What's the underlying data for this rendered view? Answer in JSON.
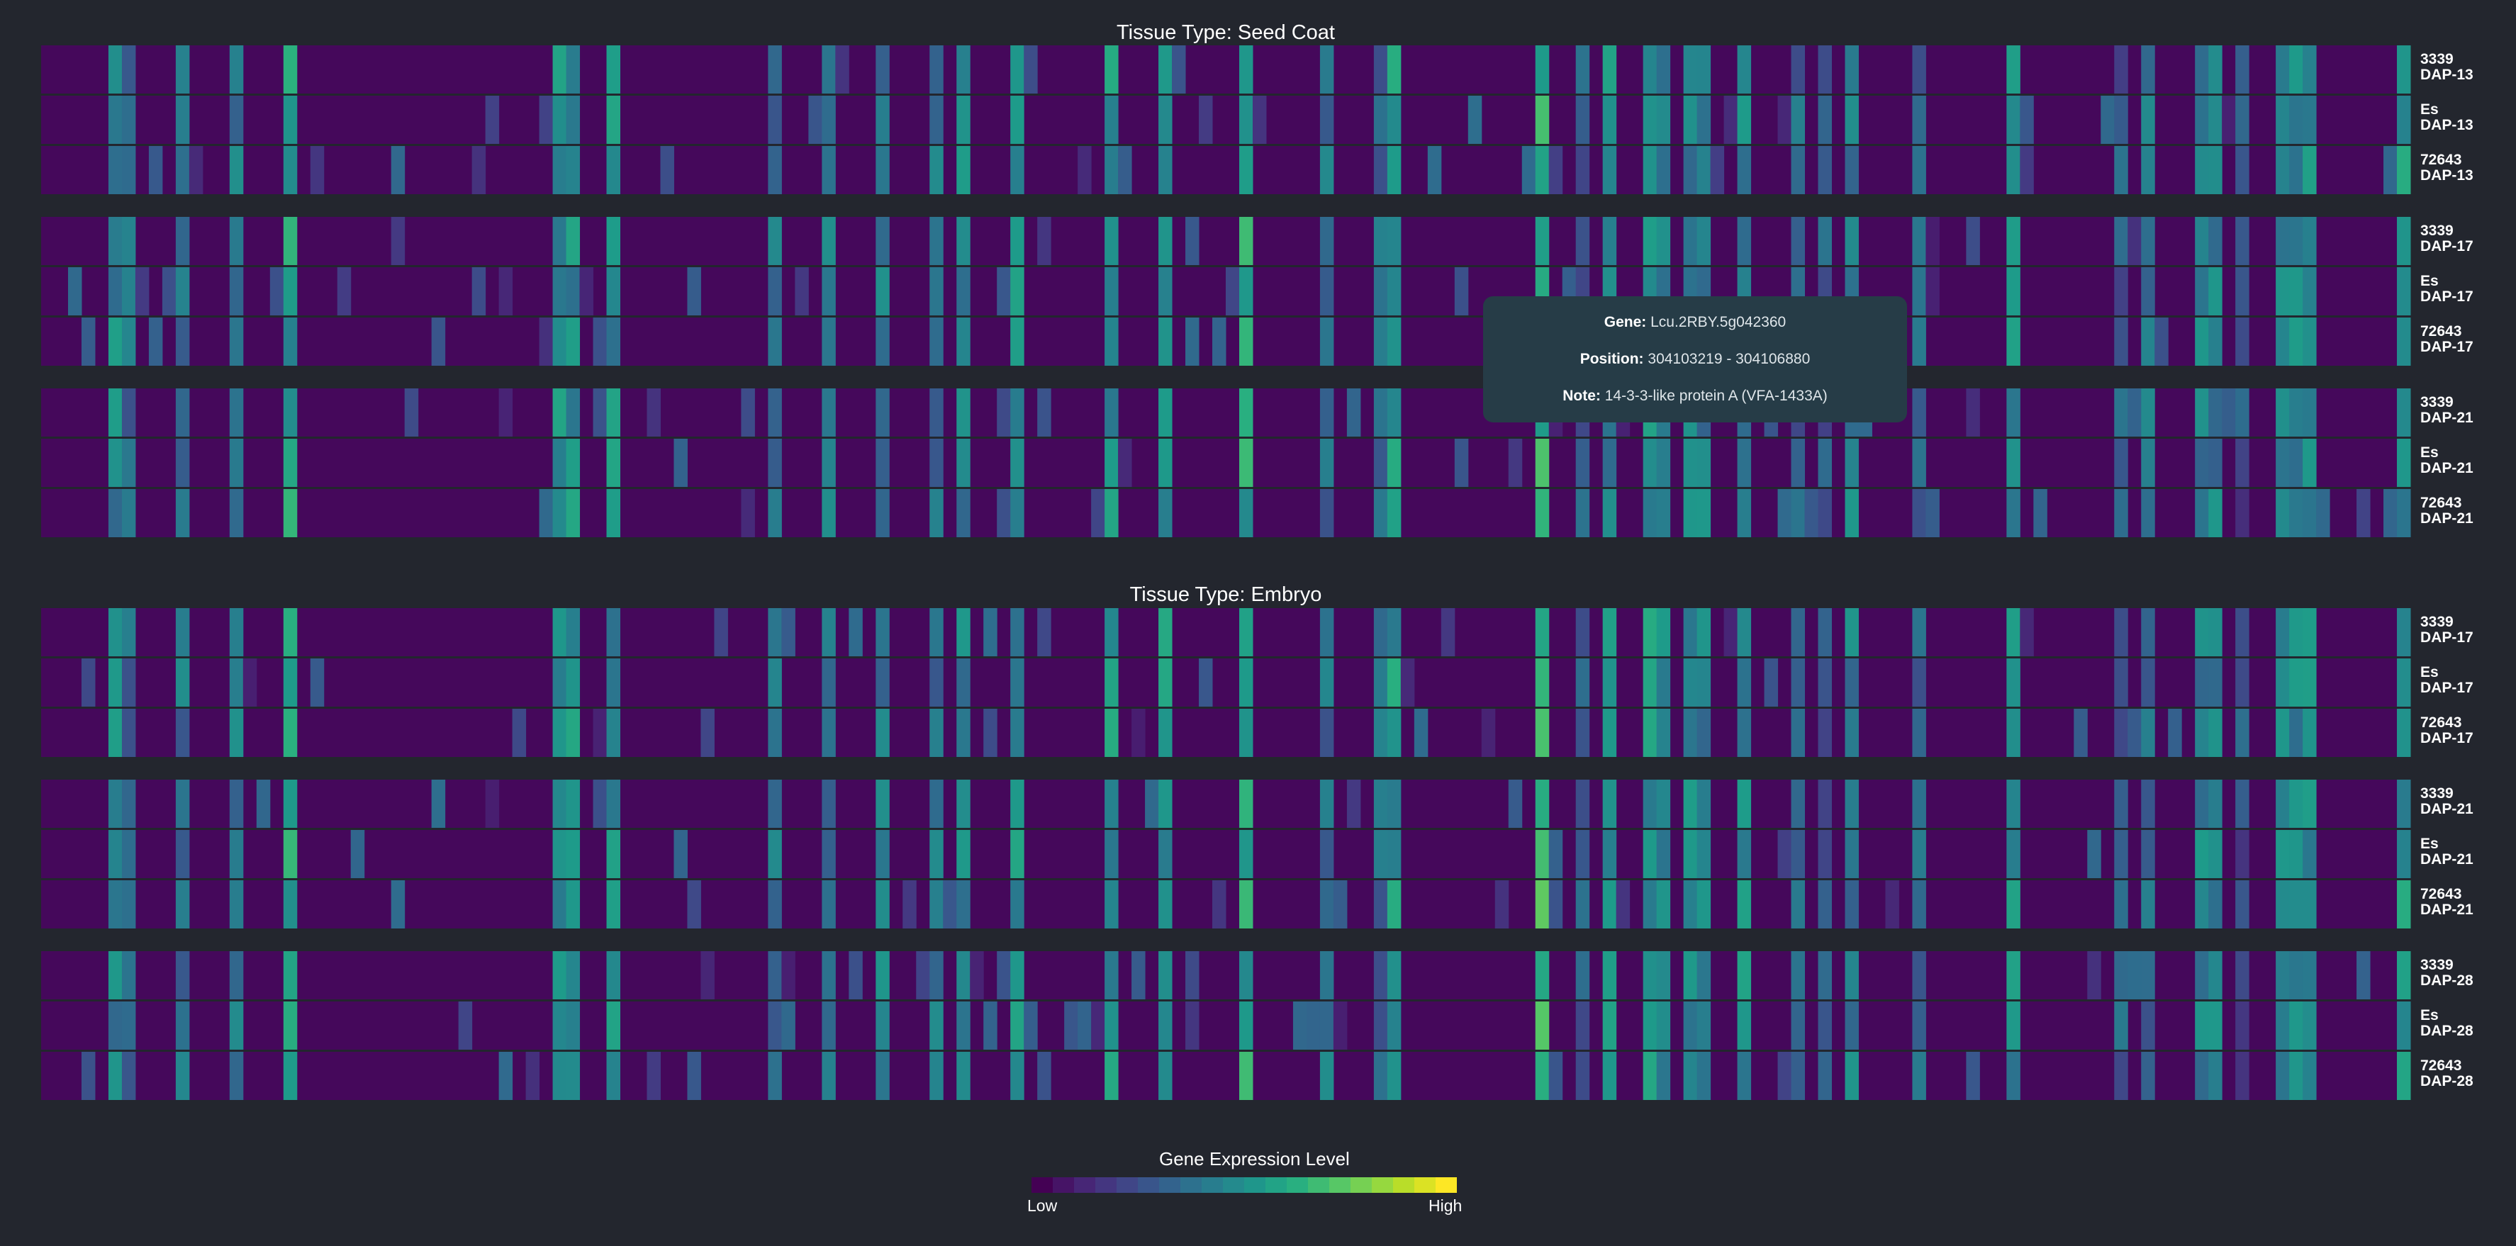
{
  "panels": [
    {
      "title": "Tissue Type: Seed Coat",
      "rows": [
        {
          "genotype": "3339",
          "stage": "DAP-13"
        },
        {
          "genotype": "Es",
          "stage": "DAP-13"
        },
        {
          "genotype": "72643",
          "stage": "DAP-13"
        },
        {
          "genotype": "3339",
          "stage": "DAP-17"
        },
        {
          "genotype": "Es",
          "stage": "DAP-17"
        },
        {
          "genotype": "72643",
          "stage": "DAP-17"
        },
        {
          "genotype": "3339",
          "stage": "DAP-21"
        },
        {
          "genotype": "Es",
          "stage": "DAP-21"
        },
        {
          "genotype": "72643",
          "stage": "DAP-21"
        }
      ]
    },
    {
      "title": "Tissue Type: Embryo",
      "rows": [
        {
          "genotype": "3339",
          "stage": "DAP-17"
        },
        {
          "genotype": "Es",
          "stage": "DAP-17"
        },
        {
          "genotype": "72643",
          "stage": "DAP-17"
        },
        {
          "genotype": "3339",
          "stage": "DAP-21"
        },
        {
          "genotype": "Es",
          "stage": "DAP-21"
        },
        {
          "genotype": "72643",
          "stage": "DAP-21"
        },
        {
          "genotype": "3339",
          "stage": "DAP-28"
        },
        {
          "genotype": "Es",
          "stage": "DAP-28"
        },
        {
          "genotype": "72643",
          "stage": "DAP-28"
        }
      ]
    }
  ],
  "tooltip": {
    "gene_label": "Gene:",
    "gene_value": "Lcu.2RBY.5g042360",
    "position_label": "Position:",
    "position_value": "304103219 - 304106880",
    "note_label": "Note:",
    "note_value": "14-3-3-like protein A (VFA-1433A)"
  },
  "legend": {
    "title": "Gene Expression Level",
    "low": "Low",
    "high": "High"
  },
  "chart_data": {
    "type": "heatmap",
    "n_genes": 176,
    "value_scale": [
      0,
      1
    ],
    "colormap": "viridis",
    "background_level": 0.02,
    "column_levels": [
      [
        5,
        0.45
      ],
      [
        6,
        0.35
      ],
      [
        10,
        0.38
      ],
      [
        14,
        0.42
      ],
      [
        18,
        0.55
      ],
      [
        38,
        0.52
      ],
      [
        39,
        0.48
      ],
      [
        42,
        0.48
      ],
      [
        54,
        0.36
      ],
      [
        58,
        0.4
      ],
      [
        62,
        0.42
      ],
      [
        66,
        0.38
      ],
      [
        68,
        0.44
      ],
      [
        72,
        0.48
      ],
      [
        79,
        0.5
      ],
      [
        83,
        0.51
      ],
      [
        89,
        0.58
      ],
      [
        95,
        0.37
      ],
      [
        99,
        0.34
      ],
      [
        100,
        0.52
      ],
      [
        111,
        0.66
      ],
      [
        114,
        0.3
      ],
      [
        116,
        0.46
      ],
      [
        119,
        0.5
      ],
      [
        120,
        0.48
      ],
      [
        122,
        0.45
      ],
      [
        123,
        0.42
      ],
      [
        126,
        0.46
      ],
      [
        130,
        0.32
      ],
      [
        132,
        0.3
      ],
      [
        134,
        0.42
      ],
      [
        139,
        0.3
      ],
      [
        146,
        0.48
      ],
      [
        154,
        0.3
      ],
      [
        156,
        0.36
      ],
      [
        160,
        0.44
      ],
      [
        161,
        0.42
      ],
      [
        163,
        0.25
      ],
      [
        166,
        0.42
      ],
      [
        167,
        0.44
      ],
      [
        168,
        0.48
      ],
      [
        175,
        0.5
      ]
    ],
    "column_row_variation": 0.12,
    "scattered_cells": "low to mid expression (0.1-0.4) in individual sample rows"
  }
}
